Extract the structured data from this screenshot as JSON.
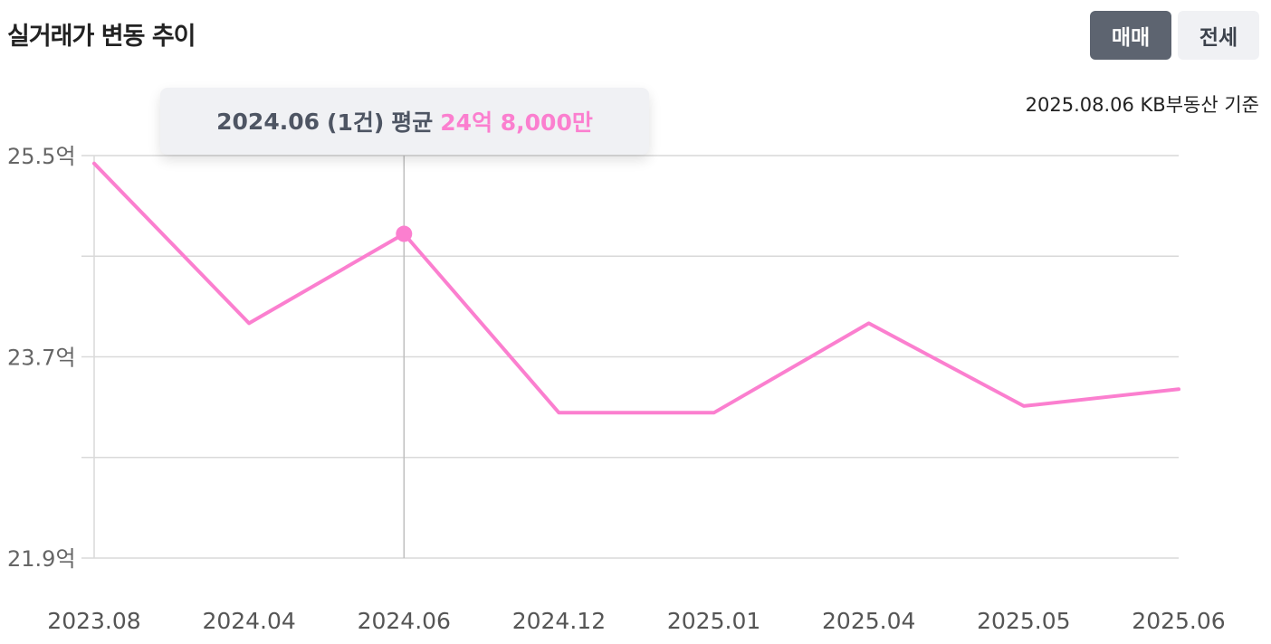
{
  "header": {
    "title": "실거래가 변동 추이",
    "tabs": [
      {
        "label": "매매",
        "active": true
      },
      {
        "label": "전세",
        "active": false
      }
    ],
    "source": "2025.08.06 KB부동산 기준"
  },
  "tooltip": {
    "date": "2024.06",
    "count": "(1건)",
    "avg_label": "평균",
    "value": "24억 8,000만"
  },
  "colors": {
    "line": "#fb7fcf",
    "grid": "#d9d9d9",
    "tab_active": "#5d6470",
    "tab_inactive": "#f0f1f4"
  },
  "chart_data": {
    "type": "line",
    "categories": [
      "2023.08",
      "2024.04",
      "2024.06",
      "2024.12",
      "2025.01",
      "2025.04",
      "2025.05",
      "2025.06"
    ],
    "series": [
      {
        "values": [
          25.43,
          24.0,
          24.8,
          23.2,
          23.2,
          24.0,
          23.26,
          23.41
        ]
      }
    ],
    "y_tick_labels": [
      "25.5억",
      "23.7억",
      "21.9억"
    ],
    "y_ticks": [
      25.5,
      23.7,
      21.9
    ],
    "ylim": [
      21.9,
      25.5
    ],
    "grid": true,
    "highlight_index": 2
  }
}
